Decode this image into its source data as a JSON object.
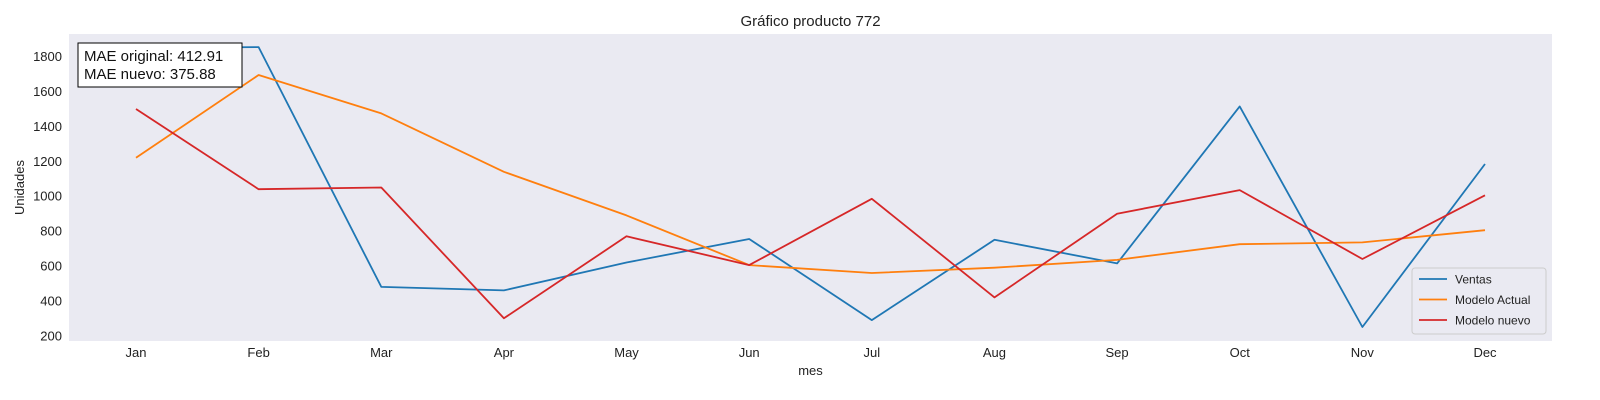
{
  "chart_data": {
    "type": "line",
    "title": "Gráfico producto 772",
    "xlabel": "mes",
    "ylabel": "Unidades",
    "categories": [
      "Jan",
      "Feb",
      "Mar",
      "Apr",
      "May",
      "Jun",
      "Jul",
      "Aug",
      "Sep",
      "Oct",
      "Nov",
      "Dec"
    ],
    "yticks": [
      200,
      400,
      600,
      800,
      1000,
      1200,
      1400,
      1600,
      1800
    ],
    "ylim": [
      170,
      1930
    ],
    "grid": false,
    "legend_position": "bottom-right",
    "series": [
      {
        "name": "Ventas",
        "color": "#1f77b4",
        "values": [
          1850,
          1855,
          480,
          460,
          620,
          755,
          290,
          750,
          615,
          1515,
          250,
          1185
        ]
      },
      {
        "name": "Modelo Actual",
        "color": "#ff7f0e",
        "values": [
          1220,
          1695,
          1475,
          1140,
          890,
          605,
          560,
          590,
          635,
          725,
          735,
          805
        ]
      },
      {
        "name": "Modelo nuevo",
        "color": "#d62728",
        "values": [
          1500,
          1040,
          1050,
          300,
          770,
          605,
          985,
          420,
          900,
          1035,
          640,
          1005
        ]
      }
    ],
    "annotation": {
      "lines": [
        "MAE original: 412.91",
        "MAE nuevo: 375.88"
      ]
    }
  }
}
